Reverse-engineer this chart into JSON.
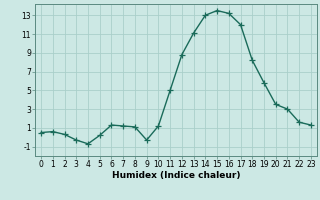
{
  "x": [
    0,
    1,
    2,
    3,
    4,
    5,
    6,
    7,
    8,
    9,
    10,
    11,
    12,
    13,
    14,
    15,
    16,
    17,
    18,
    19,
    20,
    21,
    22,
    23
  ],
  "y": [
    0.5,
    0.6,
    0.3,
    -0.3,
    -0.7,
    0.2,
    1.3,
    1.2,
    1.1,
    -0.3,
    1.2,
    5.0,
    8.8,
    11.1,
    13.0,
    13.5,
    13.2,
    12.0,
    8.2,
    5.8,
    3.5,
    3.0,
    1.6,
    1.3
  ],
  "line_color": "#1a6b5a",
  "marker": "+",
  "marker_size": 4,
  "bg_color": "#cce8e4",
  "grid_color": "#aacfca",
  "xlabel": "Humidex (Indice chaleur)",
  "xlim": [
    -0.5,
    23.5
  ],
  "ylim": [
    -2.0,
    14.2
  ],
  "yticks": [
    -1,
    1,
    3,
    5,
    7,
    9,
    11,
    13
  ],
  "xticks": [
    0,
    1,
    2,
    3,
    4,
    5,
    6,
    7,
    8,
    9,
    10,
    11,
    12,
    13,
    14,
    15,
    16,
    17,
    18,
    19,
    20,
    21,
    22,
    23
  ],
  "tick_fontsize": 5.5,
  "label_fontsize": 6.5,
  "line_width": 1.0
}
